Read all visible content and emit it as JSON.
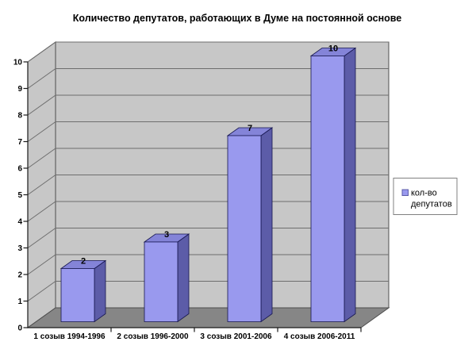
{
  "chart_data": {
    "type": "bar",
    "projection": "3d-column",
    "title": "Количество депутатов, работающих в Думе на постоянной основе",
    "categories": [
      "1 созыв 1994-1996",
      "2 созыв 1996-2000",
      "3 созыв 2001-2006",
      "4 созыв 2006-2011"
    ],
    "series": [
      {
        "name": "кол-во депутатов",
        "values": [
          2,
          3,
          7,
          10
        ]
      }
    ],
    "data_labels": [
      "2",
      "3",
      "7",
      "10"
    ],
    "ylabel": "",
    "xlabel": "",
    "ylim": [
      0,
      10
    ],
    "ytick_step": 1,
    "grid": true,
    "legend_position": "right",
    "colors": {
      "bar_front": "#9999EE",
      "bar_top": "#8484D8",
      "bar_side": "#5C5CA8",
      "bar_outline": "#16164F",
      "wall": "#C7C7C7",
      "floor": "#868686",
      "gridline": "#6E6E6E",
      "wall_edge": "#4D4D4D",
      "axis": "#1A1A1A",
      "text": "#000000",
      "legend_border": "#808080",
      "legend_bg": "#FFFFFF"
    }
  }
}
